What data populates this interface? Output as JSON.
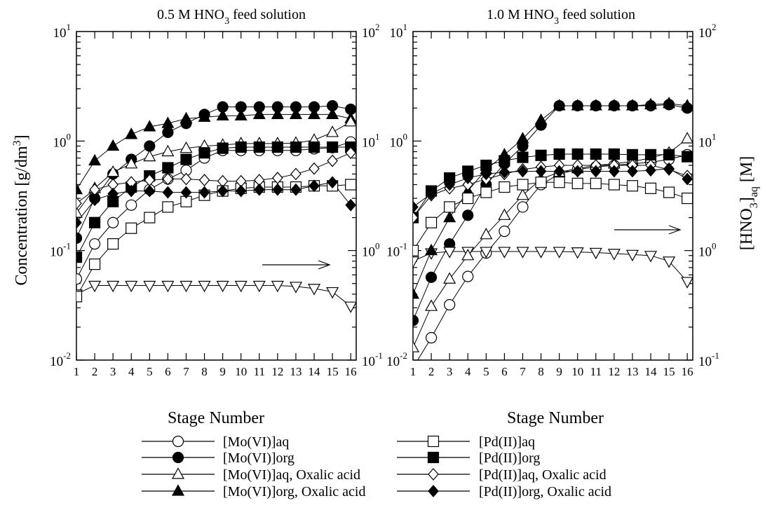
{
  "chart_data": [
    {
      "type": "line",
      "title": "0.5 M HNO₃ feed solution",
      "title_main": "0.5 M HNO",
      "title_sub": "3",
      "title_rest": " feed solution",
      "xlabel": "Stage Number",
      "ylabel": "Concentration [g/dm³]",
      "y2label": "[HNO₃]aq [M]",
      "x": [
        1,
        2,
        3,
        4,
        5,
        6,
        7,
        8,
        9,
        10,
        11,
        12,
        13,
        14,
        15,
        16
      ],
      "xticklabels": [
        "1",
        "2",
        "3",
        "4",
        "5",
        "6",
        "7",
        "8",
        "9",
        "10",
        "11",
        "12",
        "13",
        "14",
        "15",
        "16"
      ],
      "yscale": "log",
      "ylim": [
        0.01,
        10
      ],
      "y2scale": "log",
      "y2lim": [
        0.1,
        100
      ],
      "yticks": [
        {
          "base": "10",
          "exp": "-2"
        },
        {
          "base": "10",
          "exp": "-1"
        },
        {
          "base": "10",
          "exp": "0"
        },
        {
          "base": "10",
          "exp": "1"
        }
      ],
      "y2ticks": [
        {
          "base": "10",
          "exp": "-1"
        },
        {
          "base": "10",
          "exp": "0"
        },
        {
          "base": "10",
          "exp": "1"
        },
        {
          "base": "10",
          "exp": "2"
        }
      ],
      "annotation": "arrow pointing right (HNO₃ on right axis)",
      "series": [
        {
          "name": "[Mo(VI)]aq",
          "marker": "circle",
          "fill": "open",
          "axis": "left",
          "values": [
            0.055,
            0.115,
            0.18,
            0.26,
            0.36,
            0.45,
            0.54,
            0.7,
            0.82,
            0.82,
            0.82,
            0.82,
            0.82,
            0.85,
            0.87,
            0.98
          ]
        },
        {
          "name": "[Mo(VI)]org",
          "marker": "circle",
          "fill": "filled",
          "axis": "left",
          "values": [
            0.13,
            0.3,
            0.5,
            0.68,
            0.9,
            1.2,
            1.45,
            1.75,
            2.05,
            2.05,
            2.05,
            2.05,
            2.05,
            2.05,
            2.1,
            1.95
          ]
        },
        {
          "name": "[Mo(VI)]aq, Oxalic acid",
          "marker": "triangle-down",
          "fill": "open",
          "axis": "right",
          "values": [
            0.4,
            0.48,
            0.48,
            0.48,
            0.48,
            0.48,
            0.48,
            0.48,
            0.48,
            0.48,
            0.48,
            0.48,
            0.47,
            0.45,
            0.42,
            0.31
          ]
        },
        {
          "name": "[Mo(VI)]org, Oxalic acid",
          "marker": "triangle",
          "fill": "filled",
          "axis": "left",
          "values": [
            0.36,
            0.66,
            0.9,
            1.15,
            1.35,
            1.45,
            1.6,
            1.65,
            1.7,
            1.7,
            1.75,
            1.75,
            1.75,
            1.75,
            1.75,
            1.6
          ]
        },
        {
          "name": "[Mo(VI)]aq, Oxalic acid (triangle)",
          "marker": "triangle",
          "fill": "open",
          "axis": "left",
          "values": [
            0.22,
            0.37,
            0.52,
            0.62,
            0.72,
            0.8,
            0.86,
            0.9,
            0.92,
            0.95,
            0.95,
            0.95,
            0.96,
            1.02,
            1.2,
            1.5
          ]
        },
        {
          "name": "[Pd(II)]aq",
          "marker": "square",
          "fill": "open",
          "axis": "left",
          "values": [
            0.038,
            0.075,
            0.115,
            0.16,
            0.2,
            0.25,
            0.28,
            0.32,
            0.35,
            0.37,
            0.38,
            0.38,
            0.38,
            0.39,
            0.39,
            0.4
          ]
        },
        {
          "name": "[Pd(II)]org",
          "marker": "square",
          "fill": "filled",
          "axis": "left",
          "values": [
            0.087,
            0.18,
            0.28,
            0.38,
            0.48,
            0.57,
            0.68,
            0.78,
            0.86,
            0.88,
            0.88,
            0.88,
            0.88,
            0.88,
            0.88,
            0.88
          ]
        },
        {
          "name": "[Pd(II)]aq, Oxalic acid",
          "marker": "diamond",
          "fill": "open",
          "axis": "left",
          "values": [
            0.27,
            0.36,
            0.4,
            0.42,
            0.44,
            0.45,
            0.45,
            0.44,
            0.43,
            0.43,
            0.44,
            0.46,
            0.5,
            0.56,
            0.66,
            0.78
          ]
        },
        {
          "name": "[Pd(II)]org, Oxalic acid",
          "marker": "diamond",
          "fill": "filled",
          "axis": "left",
          "values": [
            0.18,
            0.29,
            0.33,
            0.35,
            0.35,
            0.34,
            0.34,
            0.34,
            0.35,
            0.35,
            0.36,
            0.36,
            0.36,
            0.39,
            0.42,
            0.26
          ]
        }
      ]
    },
    {
      "type": "line",
      "title": "1.0 M HNO₃ feed solution",
      "title_main": "1.0 M HNO",
      "title_sub": "3",
      "title_rest": " feed solution",
      "xlabel": "Stage Number",
      "ylabel": "Concentration [g/dm³]",
      "y2label": "[HNO₃]aq [M]",
      "x": [
        1,
        2,
        3,
        4,
        5,
        6,
        7,
        8,
        9,
        10,
        11,
        12,
        13,
        14,
        15,
        16
      ],
      "xticklabels": [
        "1",
        "2",
        "3",
        "4",
        "5",
        "6",
        "7",
        "8",
        "9",
        "10",
        "11",
        "12",
        "13",
        "14",
        "15",
        "16"
      ],
      "yscale": "log",
      "ylim": [
        0.01,
        10
      ],
      "y2scale": "log",
      "y2lim": [
        0.1,
        100
      ],
      "yticks": [
        {
          "base": "10",
          "exp": "-2"
        },
        {
          "base": "10",
          "exp": "-1"
        },
        {
          "base": "10",
          "exp": "0"
        },
        {
          "base": "10",
          "exp": "1"
        }
      ],
      "y2ticks": [
        {
          "base": "10",
          "exp": "-1"
        },
        {
          "base": "10",
          "exp": "0"
        },
        {
          "base": "10",
          "exp": "1"
        },
        {
          "base": "10",
          "exp": "2"
        }
      ],
      "annotation": "arrow pointing right (HNO₃ on right axis)",
      "series": [
        {
          "name": "[Mo(VI)]aq",
          "marker": "circle",
          "fill": "open",
          "axis": "left",
          "values": [
            0.0085,
            0.016,
            0.032,
            0.058,
            0.095,
            0.15,
            0.25,
            0.4,
            0.5,
            0.55,
            0.58,
            0.6,
            0.62,
            0.64,
            0.68,
            0.75
          ]
        },
        {
          "name": "[Mo(VI)]org",
          "marker": "circle",
          "fill": "filled",
          "axis": "left",
          "values": [
            0.023,
            0.057,
            0.115,
            0.21,
            0.4,
            0.62,
            0.9,
            1.4,
            2.1,
            2.1,
            2.1,
            2.1,
            2.1,
            2.1,
            2.15,
            2.0
          ]
        },
        {
          "name": "[Mo(VI)]aq, Oxalic acid",
          "marker": "triangle-down",
          "fill": "open",
          "axis": "right",
          "values": [
            0.8,
            0.95,
            0.98,
            0.98,
            0.98,
            0.98,
            0.98,
            0.98,
            0.98,
            0.97,
            0.96,
            0.94,
            0.92,
            0.9,
            0.8,
            0.52
          ]
        },
        {
          "name": "[Mo(VI)]org, Oxalic acid",
          "marker": "triangle",
          "fill": "filled",
          "axis": "left",
          "values": [
            0.04,
            0.1,
            0.2,
            0.35,
            0.55,
            0.75,
            1.05,
            1.55,
            2.1,
            2.1,
            2.1,
            2.1,
            2.1,
            2.15,
            2.2,
            2.1
          ]
        },
        {
          "name": "[Mo(VI)]aq, Oxalic acid (triangle)",
          "marker": "triangle",
          "fill": "open",
          "axis": "left",
          "values": [
            0.013,
            0.031,
            0.055,
            0.09,
            0.14,
            0.21,
            0.32,
            0.45,
            0.52,
            0.56,
            0.6,
            0.62,
            0.65,
            0.7,
            0.78,
            1.05
          ]
        },
        {
          "name": "[Pd(II)]aq",
          "marker": "square",
          "fill": "open",
          "axis": "left",
          "values": [
            0.1,
            0.18,
            0.25,
            0.3,
            0.34,
            0.38,
            0.4,
            0.42,
            0.42,
            0.41,
            0.41,
            0.4,
            0.39,
            0.37,
            0.34,
            0.3
          ]
        },
        {
          "name": "[Pd(II)]org",
          "marker": "square",
          "fill": "filled",
          "axis": "left",
          "values": [
            0.2,
            0.35,
            0.46,
            0.53,
            0.6,
            0.66,
            0.71,
            0.74,
            0.76,
            0.76,
            0.76,
            0.76,
            0.75,
            0.75,
            0.75,
            0.72
          ]
        },
        {
          "name": "[Pd(II)]aq, Oxalic acid",
          "marker": "diamond",
          "fill": "open",
          "axis": "left",
          "values": [
            0.2,
            0.32,
            0.37,
            0.4,
            0.45,
            0.5,
            0.55,
            0.58,
            0.6,
            0.6,
            0.6,
            0.6,
            0.6,
            0.6,
            0.55,
            0.48
          ]
        },
        {
          "name": "[Pd(II)]org, Oxalic acid",
          "marker": "diamond",
          "fill": "filled",
          "axis": "left",
          "values": [
            0.25,
            0.33,
            0.4,
            0.46,
            0.5,
            0.52,
            0.53,
            0.53,
            0.53,
            0.53,
            0.53,
            0.53,
            0.53,
            0.54,
            0.56,
            0.45
          ]
        }
      ]
    }
  ],
  "legend": {
    "items": [
      {
        "label": "[Mo(VI)]aq",
        "marker": "circle",
        "fill": "open"
      },
      {
        "label": "[Pd(II)]aq",
        "marker": "square",
        "fill": "open"
      },
      {
        "label": "[Mo(VI)]org",
        "marker": "circle",
        "fill": "filled"
      },
      {
        "label": "[Pd(II)]org",
        "marker": "square",
        "fill": "filled"
      },
      {
        "label": "[Mo(VI)]aq, Oxalic acid",
        "marker": "triangle",
        "fill": "open"
      },
      {
        "label": "[Pd(II)]aq, Oxalic acid",
        "marker": "diamond",
        "fill": "open"
      },
      {
        "label": "[Mo(VI)]org, Oxalic acid",
        "marker": "triangle",
        "fill": "filled"
      },
      {
        "label": "[Pd(II)]org, Oxalic acid",
        "marker": "diamond",
        "fill": "filled"
      }
    ]
  },
  "axis_labels": {
    "y_left": "Concentration [g/dm",
    "y_left_sup": "3",
    "y_left_end": "]",
    "y_right_main": "[HNO",
    "y_right_sub": "3",
    "y_right_rest": "]",
    "y_right_sub2": "aq",
    "y_right_end": " [M]"
  }
}
